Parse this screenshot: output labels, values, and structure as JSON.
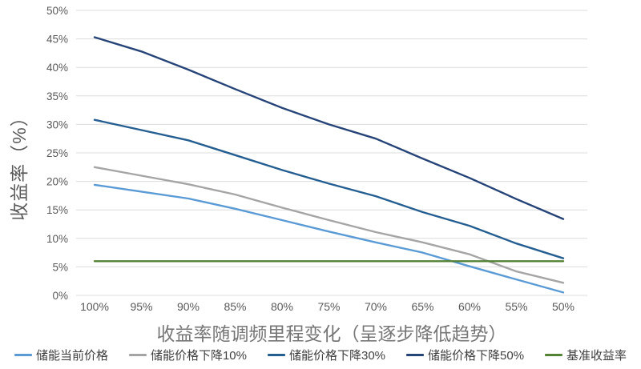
{
  "chart_data": {
    "type": "line",
    "title": "",
    "xlabel": "收益率随调频里程变化（呈逐步降低趋势）",
    "ylabel": "收益率（%）",
    "categories": [
      "100%",
      "95%",
      "90%",
      "85%",
      "80%",
      "75%",
      "70%",
      "65%",
      "60%",
      "55%",
      "50%"
    ],
    "series": [
      {
        "name": "储能当前价格",
        "color": "#5B9BD5",
        "values": [
          19.4,
          18.2,
          17.0,
          15.2,
          13.2,
          11.2,
          9.3,
          7.5,
          5.1,
          2.8,
          0.5
        ]
      },
      {
        "name": "储能价格下降10%",
        "color": "#A5A5A5",
        "values": [
          22.5,
          21.0,
          19.5,
          17.7,
          15.4,
          13.2,
          11.1,
          9.3,
          7.2,
          4.2,
          2.2
        ]
      },
      {
        "name": "储能价格下降30%",
        "color": "#255E91",
        "values": [
          30.8,
          29.0,
          27.2,
          24.6,
          22.0,
          19.6,
          17.4,
          14.6,
          12.2,
          9.1,
          6.5
        ]
      },
      {
        "name": "储能价格下降50%",
        "color": "#264478",
        "values": [
          45.3,
          42.8,
          39.6,
          36.2,
          32.9,
          30.0,
          27.5,
          24.0,
          20.6,
          16.9,
          13.4
        ]
      },
      {
        "name": "基准收益率",
        "color": "#548235",
        "values": [
          6,
          6,
          6,
          6,
          6,
          6,
          6,
          6,
          6,
          6,
          6
        ]
      }
    ],
    "ylim": [
      0,
      50
    ],
    "yticks": [
      {
        "value": 0,
        "label": "0%"
      },
      {
        "value": 5,
        "label": "5%"
      },
      {
        "value": 10,
        "label": "10%"
      },
      {
        "value": 15,
        "label": "15%"
      },
      {
        "value": 20,
        "label": "20%"
      },
      {
        "value": 25,
        "label": "25%"
      },
      {
        "value": 30,
        "label": "30%"
      },
      {
        "value": 35,
        "label": "35%"
      },
      {
        "value": 40,
        "label": "40%"
      },
      {
        "value": 45,
        "label": "45%"
      },
      {
        "value": 50,
        "label": "50%"
      }
    ],
    "grid": "horizontal-only",
    "legend_position": "bottom",
    "colors": {
      "background": "#FFFFFF",
      "gridline": "#DCDCDC",
      "axis_text": "#595959",
      "axis_title_text": "#595959",
      "x_title_text": "#767676",
      "legend_text": "#404040"
    }
  }
}
